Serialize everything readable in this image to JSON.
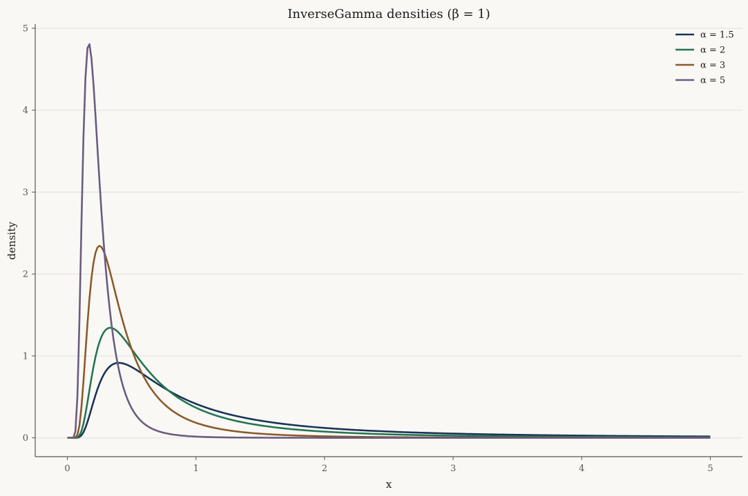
{
  "chart_data": {
    "type": "line",
    "title": "InverseGamma densities (β = 1)",
    "xlabel": "x",
    "ylabel": "density",
    "xlim": [
      -0.25,
      5.25
    ],
    "ylim": [
      -0.23,
      5.05
    ],
    "x_ticks": [
      0,
      1,
      2,
      3,
      4,
      5
    ],
    "y_ticks": [
      0,
      1,
      2,
      3,
      4,
      5
    ],
    "grid": "horizontal",
    "legend_position": "top-right",
    "beta": 1,
    "x_range": [
      0,
      5
    ],
    "series": [
      {
        "name": "α = 1.5",
        "alpha": 1.5,
        "color": "#1b3358"
      },
      {
        "name": "α = 2",
        "alpha": 2,
        "color": "#237553"
      },
      {
        "name": "α = 3",
        "alpha": 3,
        "color": "#8b5a2b"
      },
      {
        "name": "α = 5",
        "alpha": 5,
        "color": "#6b5b80"
      }
    ]
  }
}
